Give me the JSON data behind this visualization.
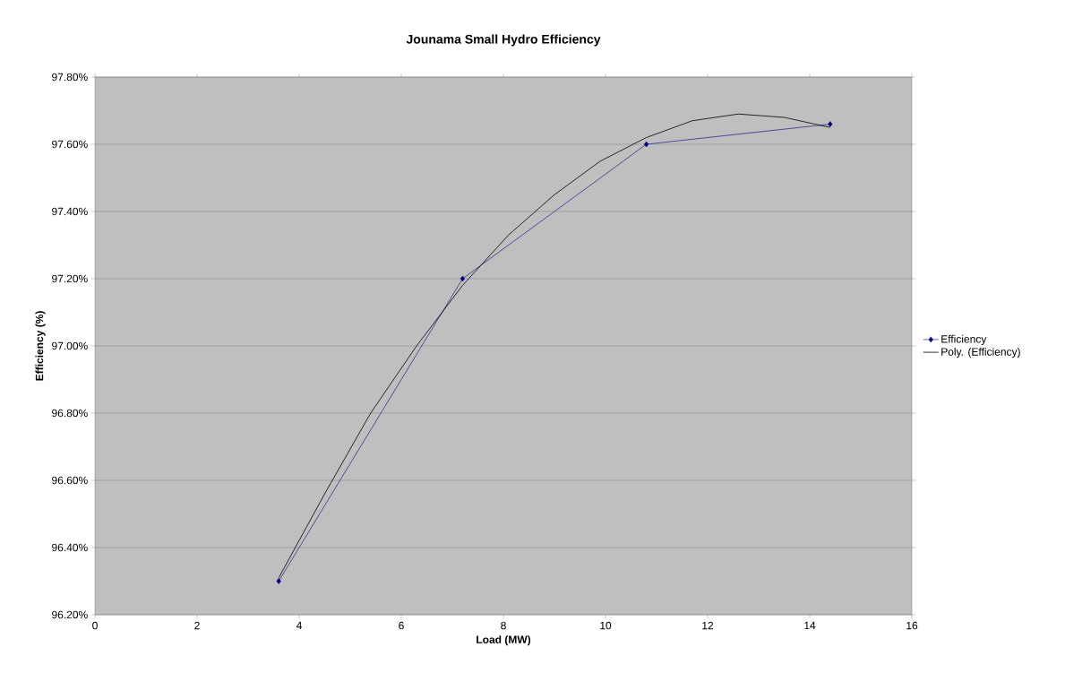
{
  "chart_data": {
    "type": "line",
    "title": "Jounama Small Hydro Efficiency",
    "xlabel": "Load (MW)",
    "ylabel": "Efficiency (%)",
    "series": [
      {
        "name": "Efficiency",
        "color": "#000080",
        "marker": "diamond",
        "x": [
          3.6,
          7.2,
          10.8,
          14.4
        ],
        "values": [
          96.3,
          97.2,
          97.6,
          97.66
        ]
      },
      {
        "name": "Poly. (Efficiency)",
        "color": "#000000",
        "marker": "none",
        "x": [
          3.6,
          4.5,
          5.4,
          6.3,
          7.2,
          8.1,
          9,
          9.9,
          10.8,
          11.7,
          12.6,
          13.5,
          14.4
        ],
        "values": [
          96.31,
          96.56,
          96.8,
          97.0,
          97.18,
          97.33,
          97.45,
          97.55,
          97.62,
          97.67,
          97.69,
          97.68,
          97.65
        ]
      }
    ],
    "xlim": [
      0,
      16
    ],
    "xticks": [
      0,
      2,
      4,
      6,
      8,
      10,
      12,
      14,
      16
    ],
    "ylim": [
      96.2,
      97.8
    ],
    "yticks": [
      {
        "value": 96.2,
        "label": "96.20%"
      },
      {
        "value": 96.4,
        "label": "96.40%"
      },
      {
        "value": 96.6,
        "label": "96.60%"
      },
      {
        "value": 96.8,
        "label": "96.80%"
      },
      {
        "value": 97.0,
        "label": "97.00%"
      },
      {
        "value": 97.2,
        "label": "97.20%"
      },
      {
        "value": 97.4,
        "label": "97.40%"
      },
      {
        "value": 97.6,
        "label": "97.60%"
      },
      {
        "value": 97.8,
        "label": "97.80%"
      }
    ],
    "grid": "y",
    "legend": "right"
  }
}
